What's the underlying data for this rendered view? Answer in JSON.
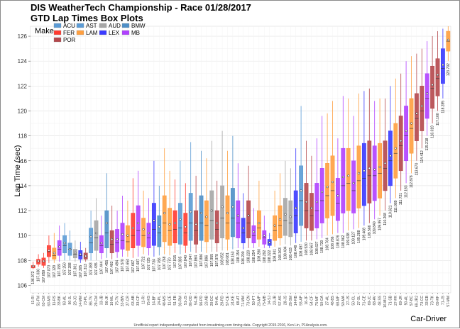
{
  "chart_data": {
    "type": "box",
    "title": "DIS WeatherTech Championship - Race 01/28/2017",
    "subtitle": "GTD Lap Times Box Plots",
    "ylabel": "Lap Time (sec)",
    "xlabel": "Car-Driver",
    "ylim": [
      105.4,
      126.8
    ],
    "yticks": [
      106,
      108,
      110,
      112,
      114,
      116,
      118,
      120,
      122,
      124,
      126
    ],
    "legend_title": "Make",
    "legend_position": "top-left",
    "grid": true,
    "footer": "Unofficial report independently computed from imsatiming.com timing data. Copyright 2015-2016, Ken Lin, P1Analysis.com.",
    "makes": [
      {
        "name": "ACU",
        "color": "#5b9bd5"
      },
      {
        "name": "AST",
        "color": "#5b9bd5"
      },
      {
        "name": "AUD",
        "color": "#a6a6a6"
      },
      {
        "name": "BMW",
        "color": "#4e8fc7"
      },
      {
        "name": "FER",
        "color": "#ff3b30"
      },
      {
        "name": "LAM",
        "color": "#ff9f3f"
      },
      {
        "name": "LEX",
        "color": "#3a3aff"
      },
      {
        "name": "MB",
        "color": "#b040ff"
      },
      {
        "name": "POR",
        "color": "#b5474b"
      }
    ],
    "boxes": [
      {
        "cat": "61-RI",
        "make": "FER",
        "min": 107.3,
        "q1": 107.4,
        "med": 107.5,
        "q3": 107.6,
        "max": 107.9,
        "mean": 107.55,
        "label": "106.972"
      },
      {
        "cat": "51-FM",
        "make": "FER",
        "min": 107.5,
        "q1": 107.7,
        "med": 107.9,
        "q3": 108.1,
        "max": 108.5,
        "mean": 107.95,
        "label": "107.030"
      },
      {
        "cat": "63-CM",
        "make": "FER",
        "min": 107.4,
        "q1": 107.6,
        "med": 107.9,
        "q3": 108.2,
        "max": 108.6,
        "mean": 107.95,
        "label": "107.059"
      },
      {
        "cat": "63-MS",
        "make": "FER",
        "min": 107.8,
        "q1": 108.3,
        "med": 108.7,
        "q3": 109.2,
        "max": 110.0,
        "mean": 108.8,
        "label": "107.073"
      },
      {
        "cat": "11-RS",
        "make": "LAM",
        "min": 107.8,
        "q1": 108.1,
        "med": 108.4,
        "q3": 109.0,
        "max": 110.2,
        "mean": 108.6,
        "label": "107.129"
      },
      {
        "cat": "33-BK",
        "make": "MB",
        "min": 107.9,
        "q1": 108.4,
        "med": 108.9,
        "q3": 109.6,
        "max": 110.8,
        "mean": 109.1,
        "label": "107.159"
      },
      {
        "cat": "93-AL",
        "make": "ACU",
        "min": 108.0,
        "q1": 108.6,
        "med": 109.2,
        "q3": 110.0,
        "max": 111.0,
        "mean": 109.4,
        "label": "107.250"
      },
      {
        "cat": "86-JL",
        "make": "ACU",
        "min": 108.0,
        "q1": 108.4,
        "med": 108.9,
        "q3": 109.4,
        "max": 110.4,
        "mean": 108.9,
        "label": "107.288"
      },
      {
        "cat": "29-JG",
        "make": "AUD",
        "min": 107.9,
        "q1": 108.2,
        "med": 108.5,
        "q3": 108.9,
        "max": 109.6,
        "mean": 108.6,
        "label": "107.301"
      },
      {
        "cat": "14-MM",
        "make": "LEX",
        "min": 107.8,
        "q1": 108.1,
        "med": 108.4,
        "q3": 108.8,
        "max": 109.5,
        "mean": 108.5,
        "label": "107.305"
      },
      {
        "cat": "73-PL",
        "make": "POR",
        "min": 107.9,
        "q1": 108.1,
        "med": 108.3,
        "q3": 108.6,
        "max": 109.0,
        "mean": 108.35,
        "label": "107.313"
      },
      {
        "cat": "86-TV",
        "make": "ACU",
        "min": 108.0,
        "q1": 108.6,
        "med": 109.4,
        "q3": 110.6,
        "max": 112.0,
        "mean": 109.9,
        "label": "107.383"
      },
      {
        "cat": "29-CM",
        "make": "AUD",
        "min": 108.0,
        "q1": 108.8,
        "med": 109.8,
        "q3": 111.2,
        "max": 113.0,
        "mean": 110.2,
        "label": "107.435"
      },
      {
        "cat": "33-JB",
        "make": "MB",
        "min": 108.1,
        "q1": 108.6,
        "med": 109.2,
        "q3": 110.0,
        "max": 111.6,
        "mean": 109.4,
        "label": "107.444"
      },
      {
        "cat": "96-JK",
        "make": "BMW",
        "min": 108.2,
        "q1": 109.0,
        "med": 110.2,
        "q3": 112.0,
        "max": 115.0,
        "mean": 111.0,
        "label": "107.455"
      },
      {
        "cat": "16-ML",
        "make": "POR",
        "min": 108.1,
        "q1": 108.6,
        "med": 109.3,
        "q3": 110.4,
        "max": 112.4,
        "mean": 109.7,
        "label": "107.483"
      },
      {
        "cat": "75-TV",
        "make": "MB",
        "min": 108.2,
        "q1": 108.7,
        "med": 109.4,
        "q3": 110.5,
        "max": 112.0,
        "mean": 109.7,
        "label": "107.494"
      },
      {
        "cat": "33-BW",
        "make": "MB",
        "min": 108.3,
        "q1": 108.9,
        "med": 109.6,
        "q3": 111.0,
        "max": 113.2,
        "mean": 110.1,
        "label": "107.570"
      },
      {
        "cat": "27-CR",
        "make": "LAM",
        "min": 108.3,
        "q1": 108.8,
        "med": 109.5,
        "q3": 110.8,
        "max": 112.8,
        "mean": 110.0,
        "label": "107.654"
      },
      {
        "cat": "63-AB",
        "make": "FER",
        "min": 108.2,
        "q1": 109.0,
        "med": 110.0,
        "q3": 111.8,
        "max": 114.6,
        "mean": 110.6,
        "label": "107.667"
      },
      {
        "cat": "33-CP",
        "make": "MB",
        "min": 108.3,
        "q1": 109.2,
        "med": 110.4,
        "q3": 112.4,
        "max": 115.2,
        "mean": 111.0,
        "label": "107.687"
      },
      {
        "cat": "11-RI",
        "make": "LAM",
        "min": 108.5,
        "q1": 109.1,
        "med": 110.0,
        "q3": 111.4,
        "max": 113.6,
        "mean": 110.5,
        "label": "107.722"
      },
      {
        "cat": "75-KS",
        "make": "MB",
        "min": 108.4,
        "q1": 109.0,
        "med": 109.8,
        "q3": 111.0,
        "max": 113.0,
        "mean": 110.2,
        "label": "107.725"
      },
      {
        "cat": "14-BF",
        "make": "LEX",
        "min": 108.3,
        "q1": 109.2,
        "med": 110.5,
        "q3": 112.6,
        "max": 116.0,
        "mean": 111.2,
        "label": "107.734"
      },
      {
        "cat": "24-PL",
        "make": "BMW",
        "min": 108.4,
        "q1": 109.1,
        "med": 110.2,
        "q3": 111.6,
        "max": 114.0,
        "mean": 110.7,
        "label": "107.766"
      },
      {
        "cat": "48-MS",
        "make": "LAM",
        "min": 108.5,
        "q1": 109.5,
        "med": 111.0,
        "q3": 113.2,
        "max": 117.0,
        "mean": 111.8,
        "label": "107.768"
      },
      {
        "cat": "11-CE",
        "make": "LAM",
        "min": 108.4,
        "q1": 109.2,
        "med": 110.4,
        "q3": 112.2,
        "max": 115.2,
        "mean": 110.9,
        "label": "107.770"
      },
      {
        "cat": "51-FB",
        "make": "FER",
        "min": 108.6,
        "q1": 109.4,
        "med": 110.5,
        "q3": 112.0,
        "max": 114.5,
        "mean": 111.0,
        "label": "107.815"
      },
      {
        "cat": "93-RM",
        "make": "ACU",
        "min": 108.5,
        "q1": 109.3,
        "med": 110.6,
        "q3": 112.6,
        "max": 116.0,
        "mean": 111.3,
        "label": "107.835"
      },
      {
        "cat": "51-JS",
        "make": "FER",
        "min": 108.6,
        "q1": 109.2,
        "med": 110.2,
        "q3": 111.8,
        "max": 114.2,
        "mean": 110.7,
        "label": "107.840"
      },
      {
        "cat": "86-OD",
        "make": "ACU",
        "min": 108.7,
        "q1": 109.6,
        "med": 111.0,
        "q3": 113.4,
        "max": 117.5,
        "mean": 111.9,
        "label": "107.847"
      },
      {
        "cat": "54-JB",
        "make": "POR",
        "min": 108.6,
        "q1": 109.3,
        "med": 110.4,
        "q3": 112.0,
        "max": 114.8,
        "mean": 110.9,
        "label": "107.864"
      },
      {
        "cat": "96-PD",
        "make": "BMW",
        "min": 108.7,
        "q1": 109.6,
        "med": 111.0,
        "q3": 113.2,
        "max": 116.8,
        "mean": 111.8,
        "label": "107.886"
      },
      {
        "cat": "23-AB",
        "make": "LAM",
        "min": 108.6,
        "q1": 109.5,
        "med": 110.8,
        "q3": 112.8,
        "max": 116.2,
        "mean": 111.5,
        "label": "107.896"
      },
      {
        "cat": "28-DC",
        "make": "AUD",
        "min": 108.7,
        "q1": 109.7,
        "med": 111.2,
        "q3": 113.6,
        "max": 117.6,
        "mean": 112.0,
        "label": "107.955"
      },
      {
        "cat": "54-AL",
        "make": "POR",
        "min": 108.7,
        "q1": 109.4,
        "med": 110.5,
        "q3": 112.0,
        "max": 114.4,
        "mean": 111.0,
        "label": "107.978"
      },
      {
        "cat": "28-RD",
        "make": "AUD",
        "min": 108.8,
        "q1": 109.8,
        "med": 111.4,
        "q3": 114.0,
        "max": 118.4,
        "mean": 112.3,
        "label": "108.052"
      },
      {
        "cat": "57-CE",
        "make": "LAM",
        "min": 108.8,
        "q1": 109.7,
        "med": 111.0,
        "q3": 113.2,
        "max": 116.8,
        "mean": 111.8,
        "label": "108.081"
      },
      {
        "cat": "24-KE",
        "make": "BMW",
        "min": 108.9,
        "q1": 109.9,
        "med": 111.4,
        "q3": 113.8,
        "max": 118.0,
        "mean": 112.3,
        "label": "108.153"
      },
      {
        "cat": "68-AT",
        "make": "MB",
        "min": 109.0,
        "q1": 109.8,
        "med": 111.0,
        "q3": 112.8,
        "max": 115.8,
        "mean": 111.6,
        "label": "108.154"
      },
      {
        "cat": "71-MM",
        "make": "LEX",
        "min": 108.9,
        "q1": 109.4,
        "med": 110.2,
        "q3": 111.4,
        "max": 113.4,
        "mean": 110.6,
        "label": "108.200"
      },
      {
        "cat": "73-CN",
        "make": "POR",
        "min": 109.0,
        "q1": 109.8,
        "med": 111.0,
        "q3": 112.8,
        "max": 115.6,
        "mean": 111.6,
        "label": "108.220"
      },
      {
        "cat": "50-FT",
        "make": "MB",
        "min": 109.0,
        "q1": 109.4,
        "med": 110.0,
        "q3": 110.8,
        "max": 112.2,
        "mean": 110.3,
        "label": "108.254"
      },
      {
        "cat": "23-MP",
        "make": "LAM",
        "min": 109.1,
        "q1": 109.7,
        "med": 110.6,
        "q3": 112.0,
        "max": 114.4,
        "mean": 111.0,
        "label": "108.280"
      },
      {
        "cat": "75-MB",
        "make": "MB",
        "min": 109.0,
        "q1": 109.3,
        "med": 109.8,
        "q3": 110.4,
        "max": 111.6,
        "mean": 110.0,
        "label": "108.292"
      },
      {
        "cat": "14-SJ",
        "make": "LEX",
        "min": 109.0,
        "q1": 109.2,
        "med": 109.4,
        "q3": 109.7,
        "max": 110.2,
        "mean": 109.45,
        "label": "108.322"
      },
      {
        "cat": "23-JB",
        "make": "LAM",
        "min": 109.1,
        "q1": 109.6,
        "med": 110.4,
        "q3": 111.6,
        "max": 113.6,
        "mean": 110.8,
        "label": "108.341"
      },
      {
        "cat": "57-AS",
        "make": "LAM",
        "min": 109.2,
        "q1": 109.8,
        "med": 110.8,
        "q3": 112.4,
        "max": 115.0,
        "mean": 111.3,
        "label": "108.363"
      },
      {
        "cat": "28-JS",
        "make": "AUD",
        "min": 109.3,
        "q1": 110.0,
        "med": 111.2,
        "q3": 113.0,
        "max": 116.0,
        "mean": 111.7,
        "label": "108.404"
      },
      {
        "cat": "28-SM",
        "make": "AUD",
        "min": 109.2,
        "q1": 109.9,
        "med": 111.0,
        "q3": 112.8,
        "max": 115.4,
        "mean": 111.5,
        "label": "108.433"
      },
      {
        "cat": "14-RB",
        "make": "LEX",
        "min": 109.4,
        "q1": 110.2,
        "med": 111.6,
        "q3": 113.6,
        "max": 117.0,
        "mean": 112.2,
        "label": "108.448"
      },
      {
        "cat": "93-AP",
        "make": "ACU",
        "min": 109.5,
        "q1": 110.8,
        "med": 112.8,
        "q3": 115.6,
        "max": 120.4,
        "mean": 113.6,
        "label": "108.497"
      },
      {
        "cat": "16-JF",
        "make": "POR",
        "min": 109.6,
        "q1": 110.6,
        "med": 112.0,
        "q3": 114.2,
        "max": 117.6,
        "mean": 112.7,
        "label": "108.530"
      },
      {
        "cat": "54-CF",
        "make": "POR",
        "min": 109.6,
        "q1": 110.4,
        "med": 111.6,
        "q3": 113.4,
        "max": 116.4,
        "mean": 112.2,
        "label": "108.567"
      },
      {
        "cat": "75-MF",
        "make": "MB",
        "min": 109.7,
        "q1": 110.6,
        "med": 112.0,
        "q3": 114.2,
        "max": 117.8,
        "mean": 112.7,
        "label": "108.627"
      },
      {
        "cat": "50-GA",
        "make": "MB",
        "min": 109.8,
        "q1": 111.0,
        "med": 112.8,
        "q3": 115.4,
        "max": 119.6,
        "mean": 113.5,
        "label": "108.730"
      },
      {
        "cat": "27-AL",
        "make": "LAM",
        "min": 110.0,
        "q1": 111.4,
        "med": 113.2,
        "q3": 115.8,
        "max": 119.8,
        "mean": 113.9,
        "label": "108.764"
      },
      {
        "cat": "48-BS",
        "make": "LAM",
        "min": 110.1,
        "q1": 111.6,
        "med": 113.6,
        "q3": 116.4,
        "max": 120.8,
        "mean": 114.3,
        "label": "108.786"
      },
      {
        "cat": "68-MF",
        "make": "MB",
        "min": 110.2,
        "q1": 111.2,
        "med": 112.6,
        "q3": 114.6,
        "max": 117.8,
        "mean": 113.2,
        "label": "108.876"
      },
      {
        "cat": "50-MA",
        "make": "MB",
        "min": 110.2,
        "q1": 111.8,
        "med": 114.0,
        "q3": 117.0,
        "max": 121.2,
        "mean": 114.7,
        "label": "108.962"
      },
      {
        "cat": "27-JS",
        "make": "LAM",
        "min": 110.4,
        "q1": 112.0,
        "med": 114.2,
        "q3": 117.0,
        "max": 121.0,
        "mean": 114.8,
        "label": "109.038"
      },
      {
        "cat": "50-CL",
        "make": "MB",
        "min": 110.5,
        "q1": 111.8,
        "med": 113.6,
        "q3": 116.0,
        "max": 119.6,
        "mean": 114.2,
        "label": "109.127"
      },
      {
        "cat": "27-SL",
        "make": "LAM",
        "min": 110.6,
        "q1": 112.2,
        "med": 114.4,
        "q3": 117.2,
        "max": 121.4,
        "mean": 115.0,
        "label": "109.288"
      },
      {
        "cat": "71-CE",
        "make": "LEX",
        "min": 110.8,
        "q1": 112.4,
        "med": 114.6,
        "q3": 117.4,
        "max": 121.6,
        "mean": 115.2,
        "label": "109.408"
      },
      {
        "cat": "69-JC",
        "make": "POR",
        "min": 111.0,
        "q1": 112.6,
        "med": 114.8,
        "q3": 117.6,
        "max": 121.8,
        "mean": 115.4,
        "label": "109.566"
      },
      {
        "cat": "68-AV",
        "make": "MB",
        "min": 111.3,
        "q1": 112.8,
        "med": 114.8,
        "q3": 117.2,
        "max": 120.8,
        "mean": 115.3,
        "label": "109.840"
      },
      {
        "cat": "48-SS",
        "make": "LAM",
        "min": 111.6,
        "q1": 113.0,
        "med": 115.0,
        "q3": 117.4,
        "max": 121.0,
        "mean": 115.5,
        "label": "109.957"
      },
      {
        "cat": "16-ML2",
        "make": "POR",
        "min": 112.0,
        "q1": 113.6,
        "med": 115.4,
        "q3": 117.6,
        "max": 121.0,
        "mean": 115.8,
        "label": "110.208"
      },
      {
        "cat": "71-SB",
        "make": "LEX",
        "min": 112.6,
        "q1": 114.0,
        "med": 116.0,
        "q3": 118.4,
        "max": 122.0,
        "mean": 116.4,
        "label": "110.621"
      },
      {
        "cat": "27-FR",
        "make": "LAM",
        "min": 113.0,
        "q1": 114.6,
        "med": 116.6,
        "q3": 119.0,
        "max": 122.6,
        "mean": 117.0,
        "label": "111.089"
      },
      {
        "cat": "69-JR",
        "make": "POR",
        "min": 113.6,
        "q1": 115.2,
        "med": 117.2,
        "q3": 119.6,
        "max": 123.0,
        "mean": 117.6,
        "label": "111.721"
      },
      {
        "cat": "50-AL",
        "make": "MB",
        "min": 114.2,
        "q1": 116.0,
        "med": 118.0,
        "q3": 120.4,
        "max": 124.0,
        "mean": 118.4,
        "label": "112.183"
      },
      {
        "cat": "57-BC",
        "make": "LAM",
        "min": 115.0,
        "q1": 116.6,
        "med": 118.6,
        "q3": 121.0,
        "max": 124.4,
        "mean": 119.0,
        "label": "112.878"
      },
      {
        "cat": "69-JR2",
        "make": "POR",
        "min": 116.0,
        "q1": 117.6,
        "med": 119.4,
        "q3": 121.4,
        "max": 124.6,
        "mean": 119.8,
        "label": "113.670"
      },
      {
        "cat": "73-CC",
        "make": "POR",
        "min": 117.0,
        "q1": 118.4,
        "med": 120.0,
        "q3": 122.0,
        "max": 125.0,
        "mean": 120.4,
        "label": "114.412"
      },
      {
        "cat": "33-EB",
        "make": "MB",
        "min": 118.0,
        "q1": 119.4,
        "med": 121.0,
        "q3": 123.0,
        "max": 125.6,
        "mean": 121.4,
        "label": "115.218"
      },
      {
        "cat": "73-TK",
        "make": "POR",
        "min": 119.0,
        "q1": 120.2,
        "med": 121.8,
        "q3": 123.6,
        "max": 126.0,
        "mean": 122.1,
        "label": "116.019"
      },
      {
        "cat": "69-RF",
        "make": "POR",
        "min": 120.0,
        "q1": 121.2,
        "med": 122.6,
        "q3": 124.2,
        "max": 126.4,
        "mean": 122.9,
        "label": "117.160"
      },
      {
        "cat": "71-JS",
        "make": "LEX",
        "min": 121.0,
        "q1": 122.2,
        "med": 123.4,
        "q3": 125.0,
        "max": 126.6,
        "mean": 123.7,
        "label": "118.285"
      },
      {
        "cat": "57-MM",
        "make": "LAM",
        "min": 124.0,
        "q1": 124.8,
        "med": 125.6,
        "q3": 126.4,
        "max": 126.8,
        "mean": 125.7,
        "label": "123.792"
      }
    ]
  }
}
